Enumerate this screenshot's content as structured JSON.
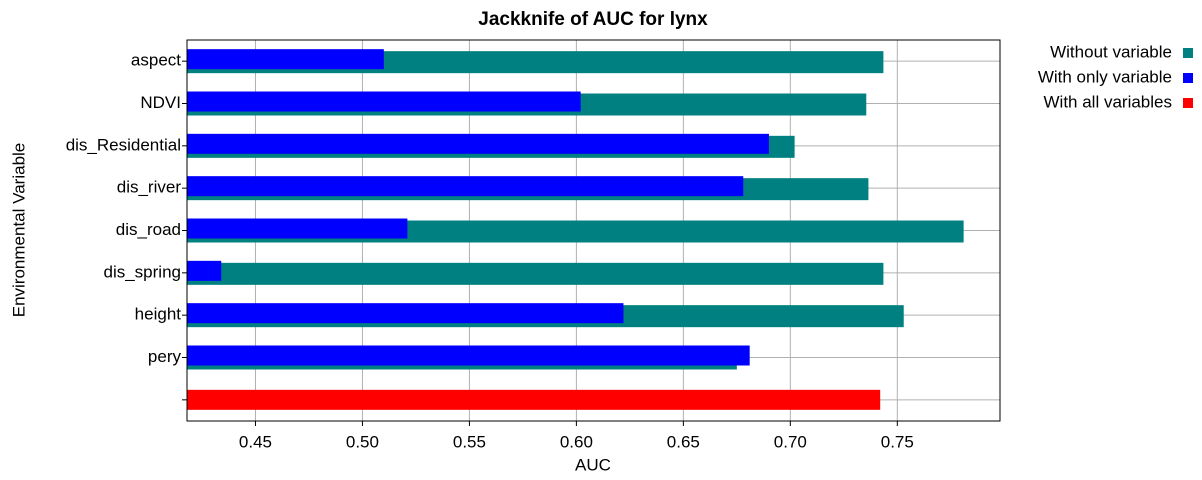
{
  "chart_data": {
    "type": "bar",
    "orientation": "horizontal",
    "title": "Jackknife of AUC for lynx",
    "x_label": "AUC",
    "y_label": "Environmental Variable",
    "categories": [
      "aspect",
      "NDVI",
      "dis_Residential",
      "dis_river",
      "dis_road",
      "dis_spring",
      "height",
      "pery",
      null
    ],
    "series": [
      {
        "name": "Without variable",
        "color": "#008080",
        "values": [
          0.7435,
          0.7355,
          0.702,
          0.7365,
          0.781,
          0.7435,
          0.753,
          0.675,
          null
        ]
      },
      {
        "name": "With only variable",
        "color": "#0000ff",
        "values": [
          0.51,
          0.602,
          0.69,
          0.678,
          0.521,
          0.434,
          0.622,
          0.681,
          null
        ]
      },
      {
        "name": "With all variables",
        "color": "#ff0000",
        "values": [
          null,
          null,
          null,
          null,
          null,
          null,
          null,
          null,
          0.742
        ]
      }
    ],
    "xlim": [
      0.418,
      0.798
    ],
    "xticks": [
      {
        "value": 0.45,
        "label": "0.45"
      },
      {
        "value": 0.5,
        "label": "0.50"
      },
      {
        "value": 0.55,
        "label": "0.55"
      },
      {
        "value": 0.6,
        "label": "0.60"
      },
      {
        "value": 0.65,
        "label": "0.65"
      },
      {
        "value": 0.7,
        "label": "0.70"
      },
      {
        "value": 0.75,
        "label": "0.75"
      }
    ],
    "grid": true,
    "legend_position": "outside-top-right"
  }
}
